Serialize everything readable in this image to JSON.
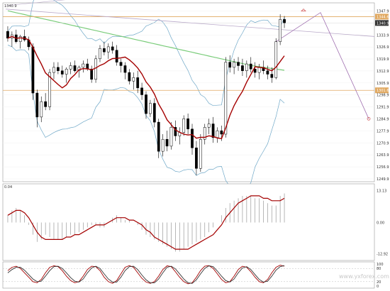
{
  "chart_data": [
    {
      "type": "candlestick",
      "panel": "price",
      "top_label": "1340.9",
      "y_ticks": [
        "1347.9",
        "1340.9",
        "1333.9",
        "1326.9",
        "1319.9",
        "1312.9",
        "1305.9",
        "1298.9",
        "1291.9",
        "1284.9",
        "1277.9",
        "1270.9",
        "1263.9",
        "1256.9",
        "1249.9"
      ],
      "ylim": [
        1249.9,
        1351
      ],
      "last_price": "1340.9",
      "resistance_level": 1344.6,
      "resistance_label": "1344.6",
      "support_level": 1301.6,
      "support_label": "1301.6",
      "ohlc": [
        [
          1336,
          1339,
          1330,
          1332
        ],
        [
          1332,
          1336,
          1327,
          1334
        ],
        [
          1334,
          1337,
          1329,
          1330
        ],
        [
          1330,
          1334,
          1326,
          1333
        ],
        [
          1333,
          1337,
          1330,
          1331
        ],
        [
          1331,
          1333,
          1325,
          1327
        ],
        [
          1327,
          1329,
          1296,
          1300
        ],
        [
          1300,
          1302,
          1280,
          1286
        ],
        [
          1286,
          1298,
          1283,
          1295
        ],
        [
          1295,
          1300,
          1290,
          1292
        ],
        [
          1292,
          1314,
          1290,
          1312
        ],
        [
          1312,
          1318,
          1308,
          1315
        ],
        [
          1315,
          1318,
          1311,
          1313
        ],
        [
          1313,
          1316,
          1309,
          1311
        ],
        [
          1311,
          1315,
          1306,
          1314
        ],
        [
          1314,
          1318,
          1311,
          1316
        ],
        [
          1316,
          1319,
          1312,
          1313
        ],
        [
          1313,
          1316,
          1309,
          1315
        ],
        [
          1315,
          1319,
          1312,
          1317
        ],
        [
          1317,
          1320,
          1313,
          1314
        ],
        [
          1314,
          1316,
          1306,
          1308
        ],
        [
          1308,
          1322,
          1306,
          1320
        ],
        [
          1320,
          1328,
          1318,
          1326
        ],
        [
          1326,
          1330,
          1322,
          1324
        ],
        [
          1324,
          1329,
          1320,
          1327
        ],
        [
          1327,
          1330,
          1323,
          1325
        ],
        [
          1325,
          1328,
          1316,
          1318
        ],
        [
          1318,
          1320,
          1312,
          1316
        ],
        [
          1316,
          1318,
          1308,
          1312
        ],
        [
          1312,
          1314,
          1305,
          1307
        ],
        [
          1307,
          1312,
          1302,
          1309
        ],
        [
          1309,
          1313,
          1300,
          1303
        ],
        [
          1303,
          1306,
          1296,
          1299
        ],
        [
          1299,
          1301,
          1285,
          1288
        ],
        [
          1288,
          1296,
          1286,
          1294
        ],
        [
          1294,
          1297,
          1280,
          1283
        ],
        [
          1283,
          1285,
          1262,
          1266
        ],
        [
          1266,
          1276,
          1263,
          1273
        ],
        [
          1273,
          1278,
          1266,
          1269
        ],
        [
          1269,
          1283,
          1267,
          1280
        ],
        [
          1280,
          1284,
          1272,
          1275
        ],
        [
          1275,
          1280,
          1270,
          1277
        ],
        [
          1277,
          1287,
          1275,
          1285
        ],
        [
          1285,
          1288,
          1276,
          1279
        ],
        [
          1279,
          1282,
          1264,
          1268
        ],
        [
          1268,
          1272,
          1252,
          1256
        ],
        [
          1256,
          1276,
          1254,
          1273
        ],
        [
          1273,
          1282,
          1270,
          1280
        ],
        [
          1280,
          1285,
          1276,
          1282
        ],
        [
          1282,
          1286,
          1271,
          1274
        ],
        [
          1274,
          1280,
          1271,
          1278
        ],
        [
          1278,
          1281,
          1272,
          1276
        ],
        [
          1276,
          1321,
          1274,
          1318
        ],
        [
          1318,
          1322,
          1312,
          1315
        ],
        [
          1315,
          1320,
          1311,
          1318
        ],
        [
          1318,
          1321,
          1313,
          1316
        ],
        [
          1316,
          1320,
          1310,
          1313
        ],
        [
          1313,
          1319,
          1309,
          1317
        ],
        [
          1317,
          1321,
          1312,
          1314
        ],
        [
          1314,
          1318,
          1309,
          1312
        ],
        [
          1312,
          1317,
          1308,
          1315
        ],
        [
          1315,
          1319,
          1311,
          1313
        ],
        [
          1313,
          1316,
          1308,
          1311
        ],
        [
          1311,
          1315,
          1306,
          1309
        ],
        [
          1309,
          1332,
          1308,
          1330
        ],
        [
          1330,
          1346,
          1328,
          1343
        ],
        [
          1343,
          1345,
          1338,
          1341
        ]
      ],
      "indicators": [
        {
          "name": "Bollinger Bands",
          "color": "#6fa8c8"
        },
        {
          "name": "moving average",
          "color": "#a40000"
        },
        {
          "name": "long moving average",
          "color": "#7acc7a"
        }
      ],
      "overlay_colors": {
        "levels": "#e0a860",
        "trendline": "#b9a9c9",
        "projection": "#a070b0",
        "arrow": "#d05050"
      }
    },
    {
      "type": "histogram",
      "panel": "macd",
      "top_label": "0.04",
      "y_ticks": [
        "13.13",
        "0.00",
        "-12.92"
      ],
      "ylim": [
        -14.5,
        14.5
      ],
      "histogram": [
        3,
        5,
        6,
        5,
        3,
        -1,
        -5,
        -8,
        -7,
        -5,
        -6,
        -7,
        -7,
        -7,
        -6,
        -5,
        -5,
        -4,
        -3,
        -2,
        -1,
        -1,
        -2,
        -2,
        0,
        2,
        3,
        2,
        1,
        1,
        0,
        -1,
        -3,
        -5,
        -6,
        -7,
        -8,
        -9,
        -10,
        -11,
        -12,
        -12,
        -11,
        -10,
        -9,
        -8,
        -7,
        -6,
        -4,
        -2,
        0,
        3,
        6,
        8,
        9,
        10,
        11,
        11,
        11,
        10,
        10,
        9,
        8,
        7,
        7,
        11,
        12
      ],
      "signal": [
        3,
        4,
        5,
        5,
        4,
        2,
        -1,
        -4,
        -6,
        -7,
        -7,
        -7,
        -7,
        -7,
        -6,
        -6,
        -5,
        -5,
        -4,
        -3,
        -2,
        -1,
        -1,
        -1,
        0,
        1,
        2,
        2,
        2,
        1,
        1,
        0,
        -1,
        -3,
        -4,
        -6,
        -7,
        -8,
        -9,
        -10,
        -11,
        -11,
        -11,
        -11,
        -10,
        -9,
        -8,
        -7,
        -6,
        -5,
        -3,
        -1,
        2,
        4,
        6,
        8,
        9,
        10,
        11,
        11,
        11,
        10,
        10,
        9,
        9,
        9,
        10
      ],
      "colors": {
        "histogram": "#999999",
        "signal": "#a40000"
      }
    },
    {
      "type": "line",
      "panel": "stochastic",
      "y_ticks": [
        "100",
        "80",
        "20",
        "0"
      ],
      "ylim": [
        0,
        100
      ],
      "series": [
        {
          "values": [
            70,
            85,
            90,
            80,
            60,
            40,
            20,
            15,
            30,
            60,
            85,
            92,
            88,
            70,
            45,
            25,
            15,
            20,
            45,
            75,
            90,
            88,
            70,
            40,
            20,
            12,
            25,
            55,
            85,
            93,
            85,
            60,
            35,
            18,
            12,
            20,
            45,
            75,
            92,
            88,
            65,
            40,
            20,
            10,
            15,
            40,
            70,
            90,
            93,
            80,
            55,
            30,
            15,
            20,
            45,
            75,
            90,
            85,
            65,
            40,
            20,
            15,
            30,
            60,
            85,
            95,
            90
          ],
          "color": "#a40000"
        },
        {
          "values": [
            60,
            75,
            85,
            85,
            72,
            52,
            32,
            20,
            22,
            45,
            70,
            88,
            90,
            80,
            60,
            38,
            22,
            18,
            32,
            60,
            82,
            90,
            80,
            55,
            32,
            18,
            18,
            40,
            70,
            88,
            90,
            75,
            50,
            28,
            15,
            15,
            32,
            60,
            85,
            90,
            78,
            55,
            32,
            15,
            12,
            28,
            55,
            80,
            92,
            88,
            68,
            45,
            25,
            18,
            32,
            60,
            82,
            88,
            75,
            52,
            30,
            18,
            22,
            45,
            72,
            88,
            93
          ],
          "color": "#333333"
        }
      ]
    }
  ],
  "watermark": "www.yxforex.com"
}
